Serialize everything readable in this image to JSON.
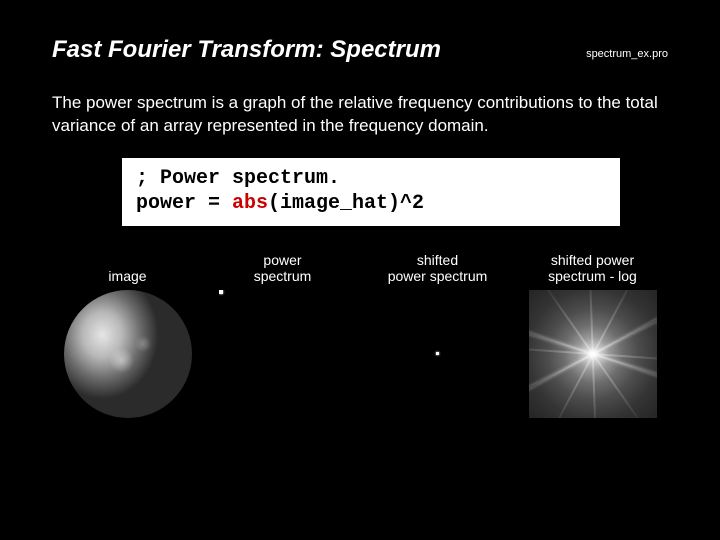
{
  "header": {
    "title": "Fast Fourier Transform: Spectrum",
    "filename": "spectrum_ex.pro"
  },
  "body": {
    "paragraph": "The power spectrum is a graph of the relative frequency contributions to the total variance of an array represented in the frequency domain."
  },
  "code": {
    "line1_comment": "; Power spectrum.",
    "line2_prefix": "power = ",
    "line2_fn": "abs",
    "line2_suffix": "(image_hat)^2"
  },
  "panels": [
    {
      "label": "image"
    },
    {
      "label": "power\nspectrum"
    },
    {
      "label": "shifted\npower spectrum"
    },
    {
      "label": "shifted power\nspectrum - log"
    }
  ],
  "colors": {
    "background": "#000000",
    "text": "#ffffff",
    "code_bg": "#ffffff",
    "code_text": "#000000",
    "code_fn": "#cc0000"
  }
}
